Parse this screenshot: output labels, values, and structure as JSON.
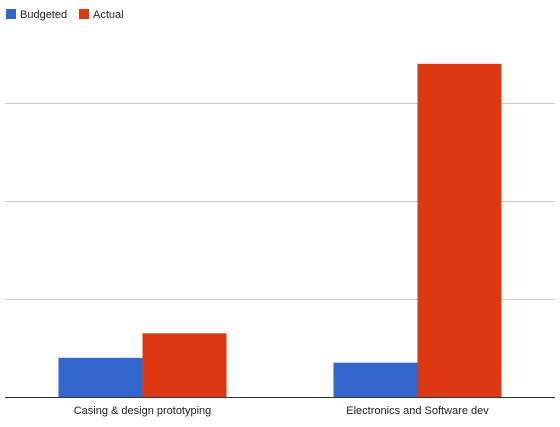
{
  "chart_data": {
    "type": "bar",
    "categories": [
      "Casing & design prototyping",
      "Electronics and Software dev"
    ],
    "series": [
      {
        "name": "Budgeted",
        "values": [
          4,
          3.5
        ],
        "color": "#3366cc"
      },
      {
        "name": "Actual",
        "values": [
          6.5,
          34
        ],
        "color": "#dc3912"
      }
    ],
    "ylim": [
      0,
      40
    ],
    "gridlines": [
      10,
      20,
      30
    ],
    "legend_position": "top-left",
    "grid": true,
    "axis_color": "#333333",
    "grid_color": "#cccccc"
  }
}
